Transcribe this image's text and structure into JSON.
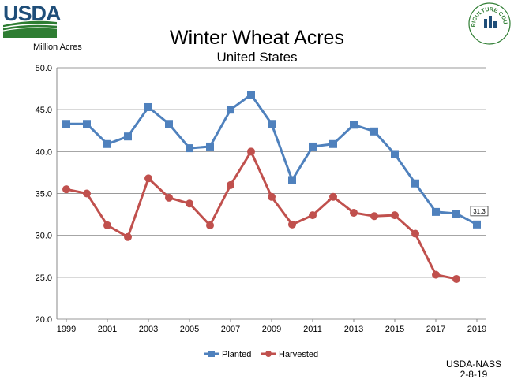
{
  "header": {
    "logo_text": "USDA",
    "seal_text": "AGRICULTURE COUNTS"
  },
  "source": {
    "org": "USDA-NASS",
    "date": "2-8-19"
  },
  "colors": {
    "planted": "#4f81bd",
    "harvested": "#c0504d",
    "grid": "#9a9a9a",
    "usda_blue": "#1f4e79",
    "usda_green": "#2e7d32"
  },
  "chart_data": {
    "type": "line",
    "title": "Winter Wheat Acres",
    "subtitle": "United States",
    "ylabel": "Million Acres",
    "xlabel": "",
    "ylim": [
      20,
      50
    ],
    "xlim": [
      1999,
      2019
    ],
    "y_ticks": [
      "50.0",
      "45.0",
      "40.0",
      "35.0",
      "30.0",
      "25.0",
      "20.0"
    ],
    "x_ticks": [
      "1999",
      "2001",
      "2003",
      "2005",
      "2007",
      "2009",
      "2011",
      "2013",
      "2015",
      "2017",
      "2019"
    ],
    "grid": "horizontal",
    "legend_position": "bottom",
    "x": [
      1999,
      2000,
      2001,
      2002,
      2003,
      2004,
      2005,
      2006,
      2007,
      2008,
      2009,
      2010,
      2011,
      2012,
      2013,
      2014,
      2015,
      2016,
      2017,
      2018,
      2019
    ],
    "series": [
      {
        "name": "Planted",
        "marker": "square",
        "values": [
          43.3,
          43.3,
          40.9,
          41.8,
          45.3,
          43.3,
          40.4,
          40.6,
          45.0,
          46.8,
          43.3,
          36.6,
          40.6,
          40.9,
          43.2,
          42.4,
          39.7,
          36.2,
          32.8,
          32.6,
          31.3
        ]
      },
      {
        "name": "Harvested",
        "marker": "circle",
        "values": [
          35.5,
          35.0,
          31.2,
          29.8,
          36.8,
          34.5,
          33.8,
          31.2,
          36.0,
          40.0,
          34.6,
          31.3,
          32.4,
          34.6,
          32.7,
          32.3,
          32.4,
          30.2,
          25.3,
          24.8,
          null
        ]
      }
    ],
    "annotations": [
      {
        "series": "Planted",
        "x": 2019,
        "label": "31.3"
      }
    ]
  }
}
